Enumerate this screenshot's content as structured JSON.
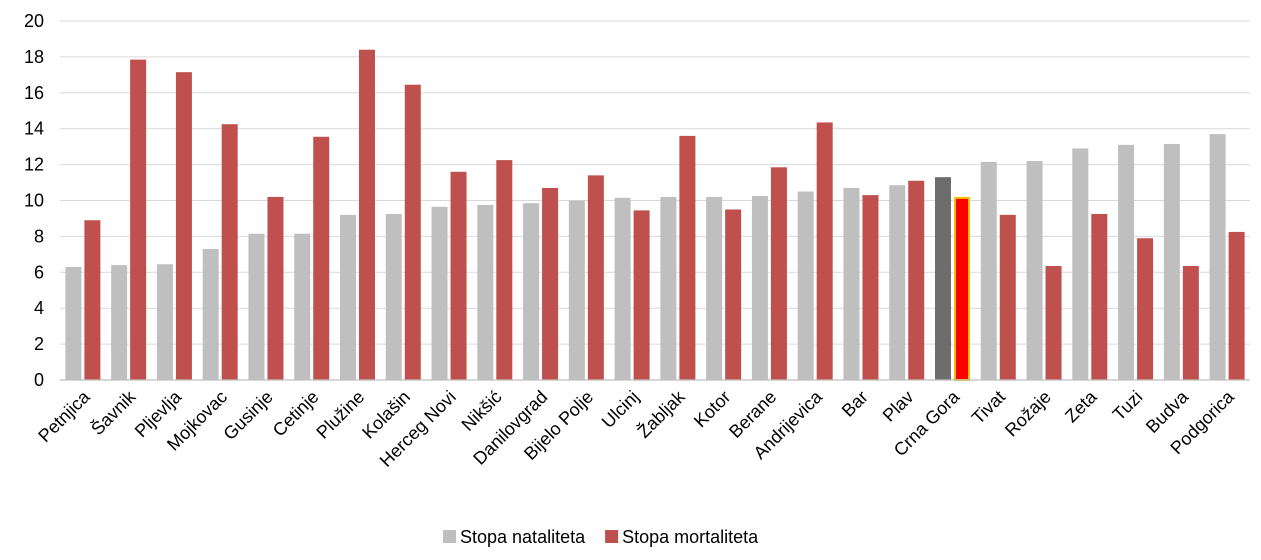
{
  "chart_data": {
    "type": "bar",
    "title": "",
    "xlabel": "",
    "ylabel": "",
    "ylim": [
      0,
      20
    ],
    "yticks": [
      0,
      2,
      4,
      6,
      8,
      10,
      12,
      14,
      16,
      18,
      20
    ],
    "grid": true,
    "legend_position": "bottom",
    "categories": [
      "Petnjica",
      "Šavnik",
      "Pljevlja",
      "Mojkovac",
      "Gusinje",
      "Cetinje",
      "Plužine",
      "Kolašin",
      "Herceg Novi",
      "Nikšić",
      "Danilovgrad",
      "Bijelo Polje",
      "Ulcinj",
      "Žabljak",
      "Kotor",
      "Berane",
      "Andrijevica",
      "Bar",
      "Plav",
      "Crna Gora",
      "Tivat",
      "Rožaje",
      "Zeta",
      "Tuzi",
      "Budva",
      "Podgorica"
    ],
    "highlight_category": "Crna Gora",
    "series": [
      {
        "name": "Stopa nataliteta",
        "color": "#bfbfbf",
        "highlight_color": "#6d6d6d",
        "values": [
          6.3,
          6.4,
          6.45,
          7.3,
          8.15,
          8.15,
          9.2,
          9.25,
          9.65,
          9.75,
          9.85,
          10.0,
          10.15,
          10.2,
          10.2,
          10.25,
          10.5,
          10.7,
          10.85,
          11.3,
          12.15,
          12.2,
          12.9,
          13.1,
          13.15,
          13.7
        ]
      },
      {
        "name": "Stopa mortaliteta",
        "color": "#c0504d",
        "highlight_color": "#ff0000",
        "highlight_stroke": "#f2c200",
        "values": [
          8.9,
          17.85,
          17.15,
          14.25,
          10.2,
          13.55,
          18.4,
          16.45,
          11.6,
          12.25,
          10.7,
          11.4,
          9.45,
          13.6,
          9.5,
          11.85,
          14.35,
          10.3,
          11.1,
          10.2,
          9.2,
          6.35,
          9.25,
          7.9,
          6.35,
          8.25
        ]
      }
    ]
  }
}
